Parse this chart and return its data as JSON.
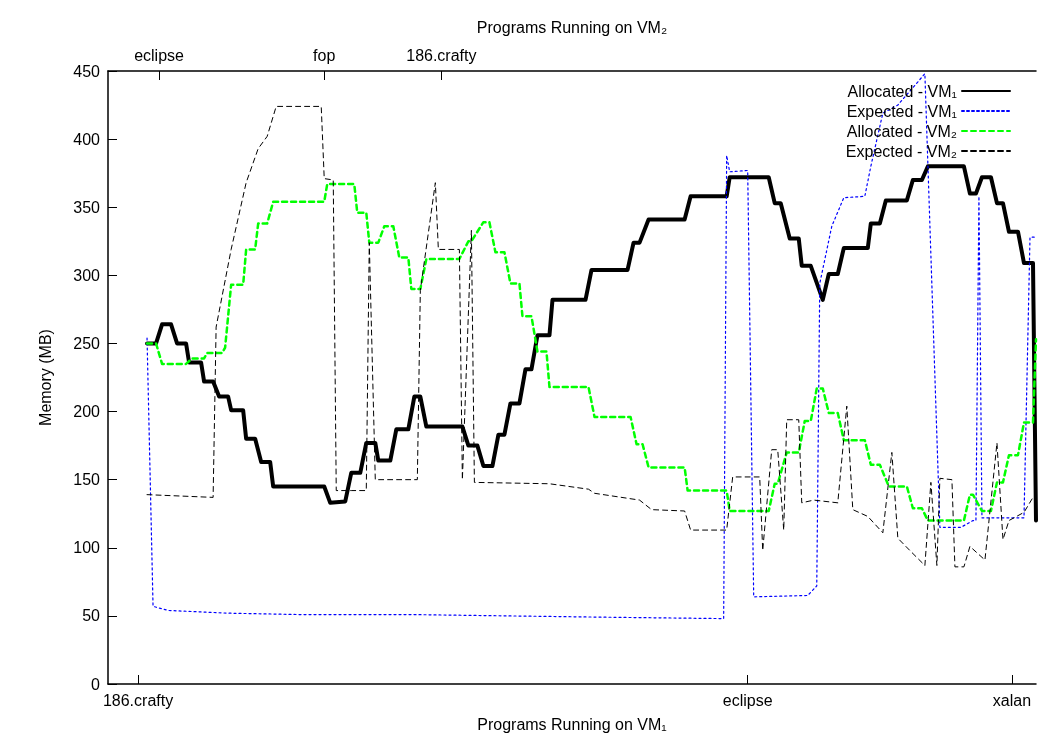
{
  "chart_data": {
    "type": "line",
    "xlabel": "Programs Running on VM₁",
    "x2label": "Programs Running on VM₂",
    "ylabel": "Memory (MB)",
    "annotations": [
      "eclipse",
      "fop",
      "186.crafty"
    ],
    "categories": [
      null,
      null,
      null,
      null,
      null,
      null,
      null,
      null,
      null,
      null,
      "186.crafty",
      null,
      null,
      null,
      null,
      null,
      null,
      null,
      null,
      null,
      null,
      null,
      null,
      null,
      null,
      null,
      null,
      null,
      null,
      null,
      null,
      null,
      null,
      null,
      null,
      null,
      null,
      null,
      null,
      null,
      null,
      null,
      null,
      null,
      null,
      null,
      null,
      null,
      null,
      null,
      null,
      null,
      null,
      null,
      null,
      null,
      null,
      null,
      null,
      null,
      null,
      null,
      null,
      null,
      null,
      null,
      null,
      null,
      null,
      null,
      null,
      null,
      null,
      null,
      null,
      null,
      null,
      null,
      null,
      null,
      null,
      null,
      null,
      null,
      null,
      null,
      null,
      null,
      null,
      null,
      null,
      null,
      null,
      null,
      null,
      null,
      null,
      null,
      null,
      null,
      null,
      null,
      null,
      null,
      null,
      null,
      null,
      null,
      null,
      null,
      null,
      null,
      null,
      null,
      null,
      null,
      null,
      null,
      null,
      null,
      null,
      null,
      null,
      null,
      null,
      null,
      null,
      null,
      null,
      null,
      null,
      null,
      null,
      null,
      null,
      null,
      null,
      null,
      null,
      null,
      null,
      null,
      null,
      null,
      null,
      null,
      null,
      null,
      null,
      null,
      null,
      null,
      null,
      null,
      null,
      null,
      null,
      null,
      null,
      null,
      null,
      null,
      null,
      null,
      null,
      null,
      null,
      null,
      null,
      null,
      null,
      null,
      null,
      null,
      null,
      null,
      null,
      null,
      null,
      null,
      null,
      null,
      null,
      null,
      null,
      null,
      null,
      null,
      null,
      null,
      null,
      null,
      null,
      null,
      null,
      null,
      null,
      null,
      null,
      null,
      null,
      null,
      null,
      null,
      null,
      null,
      null,
      null,
      null,
      null,
      null,
      null,
      null,
      "eclipse",
      null,
      null,
      null,
      null,
      null,
      null,
      null,
      null,
      null,
      null,
      null,
      null,
      null,
      null,
      null,
      null,
      null,
      null,
      null,
      null,
      null,
      null,
      null,
      null,
      null,
      null,
      null,
      null,
      null,
      null,
      null,
      null,
      null,
      null,
      null,
      null,
      null,
      null,
      null,
      null,
      null,
      null,
      null,
      null,
      null,
      null,
      null,
      null,
      null,
      null,
      null,
      null,
      null,
      null,
      null,
      null,
      null,
      null,
      null,
      null,
      null,
      null,
      null,
      null,
      null,
      null,
      null,
      null,
      null,
      null,
      null,
      null,
      null,
      null,
      null,
      null,
      null,
      null,
      null,
      null,
      null,
      null,
      null,
      null,
      null,
      null,
      null,
      "xalan",
      null,
      null,
      null,
      null,
      null,
      null,
      null,
      null
    ],
    "ylim": [
      0,
      450
    ],
    "yticks": [
      0,
      50,
      100,
      150,
      200,
      250,
      300,
      350,
      400,
      450
    ],
    "grid": false,
    "legend": "top right",
    "marker": "none",
    "series": [
      {
        "name": "Allocated - VM₁",
        "color": "#000000",
        "line_style": "solid",
        "values": [
          null,
          null,
          null,
          null,
          null,
          null,
          null,
          null,
          null,
          null,
          null,
          null,
          null,
          250,
          null,
          null,
          250,
          null,
          264,
          null,
          null,
          264,
          null,
          250,
          null,
          null,
          250,
          236,
          null,
          null,
          null,
          236,
          222,
          null,
          null,
          222,
          null,
          211,
          null,
          null,
          211,
          201,
          null,
          null,
          null,
          201,
          180,
          null,
          null,
          180,
          null,
          163,
          null,
          null,
          163,
          145,
          null,
          null,
          null,
          null,
          null,
          null,
          null,
          null,
          null,
          null,
          null,
          null,
          null,
          null,
          null,
          null,
          145,
          null,
          133,
          null,
          null,
          null,
          null,
          134,
          null,
          155,
          null,
          null,
          155,
          null,
          177,
          null,
          null,
          177,
          164,
          null,
          null,
          null,
          164,
          null,
          187,
          null,
          null,
          null,
          187,
          null,
          211,
          null,
          211,
          null,
          189,
          null,
          null,
          null,
          null,
          null,
          null,
          null,
          null,
          null,
          null,
          null,
          189,
          null,
          175,
          null,
          null,
          175,
          null,
          160,
          null,
          null,
          160,
          null,
          183,
          null,
          183,
          null,
          206,
          null,
          null,
          206,
          null,
          231,
          null,
          231,
          null,
          256,
          null,
          null,
          null,
          256,
          282,
          null,
          null,
          null,
          null,
          null,
          null,
          null,
          null,
          null,
          null,
          282,
          null,
          304,
          null,
          null,
          null,
          null,
          null,
          null,
          null,
          null,
          null,
          null,
          null,
          304,
          null,
          324,
          null,
          324,
          null,
          null,
          341,
          null,
          null,
          null,
          null,
          null,
          null,
          null,
          null,
          null,
          null,
          null,
          341,
          null,
          358,
          null,
          null,
          null,
          null,
          null,
          null,
          null,
          null,
          null,
          null,
          null,
          358,
          372,
          null,
          null,
          null,
          null,
          null,
          null,
          null,
          null,
          null,
          null,
          null,
          null,
          372,
          null,
          353,
          null,
          353,
          null,
          null,
          327,
          null,
          null,
          327,
          307,
          null,
          null,
          307,
          null,
          null,
          null,
          282,
          null,
          301,
          null,
          null,
          301,
          null,
          320,
          null,
          null,
          null,
          null,
          null,
          null,
          null,
          320,
          338,
          null,
          null,
          338,
          null,
          355,
          null,
          null,
          null,
          null,
          null,
          null,
          355,
          null,
          370,
          null,
          null,
          370,
          null,
          380,
          null,
          null,
          null,
          null,
          null,
          null,
          null,
          null,
          null,
          null,
          null,
          380,
          null,
          360,
          null,
          360,
          null,
          372,
          null,
          null,
          372,
          null,
          353,
          null,
          353,
          null,
          332,
          null,
          null,
          332,
          null,
          309,
          null,
          null,
          309,
          120
        ]
      },
      {
        "name": "Expected - VM₁",
        "color": "#0000ff",
        "line_style": "dotted",
        "values": [
          null,
          null,
          null,
          null,
          null,
          null,
          null,
          null,
          null,
          null,
          null,
          null,
          null,
          254,
          null,
          57,
          null,
          null,
          null,
          null,
          54,
          null,
          null,
          null,
          null,
          null,
          null,
          null,
          null,
          null,
          null,
          null,
          null,
          null,
          null,
          null,
          null,
          null,
          null,
          null,
          52,
          null,
          null,
          null,
          null,
          null,
          null,
          null,
          null,
          null,
          null,
          null,
          null,
          null,
          null,
          null,
          null,
          null,
          null,
          null,
          null,
          null,
          null,
          51,
          null,
          null,
          null,
          null,
          null,
          null,
          null,
          null,
          null,
          null,
          null,
          null,
          null,
          null,
          null,
          null,
          null,
          null,
          null,
          null,
          null,
          null,
          null,
          null,
          null,
          null,
          null,
          null,
          null,
          null,
          null,
          null,
          null,
          null,
          null,
          null,
          51,
          null,
          null,
          null,
          null,
          null,
          null,
          null,
          null,
          null,
          null,
          null,
          null,
          null,
          null,
          null,
          null,
          null,
          null,
          null,
          null,
          null,
          null,
          null,
          null,
          null,
          null,
          null,
          null,
          null,
          null,
          null,
          null,
          50,
          null,
          null,
          null,
          null,
          null,
          null,
          null,
          null,
          null,
          null,
          null,
          null,
          null,
          null,
          null,
          null,
          null,
          null,
          null,
          null,
          null,
          null,
          null,
          null,
          null,
          null,
          null,
          null,
          null,
          null,
          null,
          null,
          null,
          49,
          null,
          null,
          null,
          null,
          null,
          null,
          null,
          null,
          null,
          null,
          null,
          null,
          null,
          null,
          null,
          null,
          null,
          null,
          null,
          null,
          null,
          null,
          null,
          null,
          null,
          null,
          null,
          null,
          null,
          null,
          null,
          null,
          null,
          null,
          null,
          null,
          null,
          48,
          388,
          376,
          null,
          null,
          null,
          null,
          null,
          377,
          null,
          64,
          null,
          null,
          null,
          null,
          null,
          null,
          null,
          null,
          null,
          null,
          null,
          null,
          null,
          null,
          null,
          null,
          null,
          65,
          null,
          null,
          72,
          294,
          null,
          null,
          null,
          336,
          null,
          null,
          null,
          357,
          null,
          null,
          null,
          null,
          null,
          null,
          358,
          null,
          380,
          null,
          null,
          null,
          419,
          null,
          null,
          null,
          null,
          425,
          null,
          null,
          null,
          null,
          null,
          null,
          null,
          null,
          448,
          null,
          null,
          null,
          null,
          115,
          null,
          null,
          null,
          null,
          null,
          null,
          115,
          null,
          null,
          null,
          120,
          120,
          358,
          122,
          null,
          null,
          null,
          null,
          null,
          null,
          null,
          null,
          null,
          null,
          null,
          null,
          null,
          122,
          null,
          328,
          null,
          328
        ]
      },
      {
        "name": "Allocated - VM₂",
        "color": "#00ff00",
        "line_style": "dashed",
        "values": [
          null,
          null,
          null,
          null,
          null,
          null,
          null,
          null,
          null,
          null,
          null,
          null,
          null,
          250,
          null,
          null,
          250,
          null,
          235,
          null,
          null,
          null,
          null,
          null,
          null,
          null,
          235,
          null,
          239,
          null,
          null,
          null,
          239,
          243,
          null,
          null,
          null,
          null,
          243,
          247,
          null,
          293,
          null,
          null,
          null,
          293,
          319,
          null,
          null,
          319,
          338,
          null,
          null,
          338,
          null,
          354,
          null,
          null,
          null,
          null,
          null,
          null,
          null,
          null,
          null,
          null,
          null,
          null,
          null,
          null,
          null,
          null,
          354,
          367,
          null,
          null,
          null,
          null,
          null,
          null,
          null,
          null,
          367,
          346,
          null,
          null,
          346,
          324,
          null,
          null,
          324,
          null,
          336,
          null,
          null,
          336,
          null,
          313,
          null,
          null,
          313,
          290,
          null,
          null,
          290,
          null,
          312,
          null,
          null,
          null,
          null,
          null,
          null,
          null,
          null,
          null,
          null,
          312,
          null,
          null,
          325,
          325,
          null,
          null,
          null,
          339,
          null,
          339,
          null,
          317,
          null,
          null,
          317,
          null,
          294,
          null,
          null,
          294,
          270,
          null,
          null,
          270,
          null,
          244,
          null,
          null,
          244,
          218,
          null,
          null,
          null,
          null,
          null,
          null,
          null,
          null,
          null,
          null,
          null,
          null,
          218,
          null,
          196,
          null,
          null,
          null,
          null,
          null,
          null,
          null,
          null,
          null,
          null,
          null,
          196,
          null,
          176,
          null,
          176,
          null,
          159,
          null,
          null,
          null,
          null,
          null,
          null,
          null,
          null,
          null,
          null,
          null,
          159,
          142,
          null,
          null,
          null,
          null,
          null,
          null,
          null,
          null,
          null,
          null,
          null,
          null,
          142,
          127,
          null,
          null,
          null,
          null,
          null,
          null,
          null,
          null,
          null,
          null,
          null,
          null,
          127,
          null,
          147,
          147,
          null,
          null,
          170,
          null,
          null,
          null,
          170,
          null,
          193,
          null,
          193,
          null,
          217,
          null,
          217,
          null,
          199,
          null,
          null,
          199,
          null,
          179,
          null,
          null,
          null,
          null,
          null,
          null,
          179,
          null,
          161,
          null,
          null,
          161,
          null,
          null,
          145,
          null,
          null,
          null,
          null,
          null,
          145,
          null,
          129,
          null,
          null,
          129,
          null,
          120,
          null,
          null,
          null,
          null,
          null,
          null,
          null,
          null,
          null,
          null,
          null,
          120,
          null,
          139,
          139,
          null,
          null,
          127,
          null,
          null,
          127,
          null,
          148,
          null,
          148,
          null,
          168,
          null,
          null,
          168,
          null,
          192,
          null,
          null,
          192,
          253
        ]
      },
      {
        "name": "Expected - VM₂",
        "color": "#000000",
        "line_style": "dashed",
        "values": [
          null,
          null,
          null,
          null,
          null,
          null,
          null,
          null,
          null,
          null,
          null,
          null,
          null,
          139,
          null,
          null,
          null,
          null,
          null,
          null,
          null,
          null,
          null,
          null,
          null,
          null,
          null,
          null,
          null,
          null,
          null,
          null,
          null,
          null,
          null,
          137,
          262,
          null,
          null,
          null,
          null,
          319,
          null,
          null,
          null,
          null,
          368,
          null,
          null,
          null,
          393,
          null,
          null,
          402,
          null,
          null,
          424,
          null,
          null,
          null,
          null,
          null,
          null,
          null,
          null,
          null,
          null,
          null,
          null,
          null,
          null,
          424,
          371,
          null,
          null,
          370,
          142,
          null,
          null,
          null,
          null,
          142,
          null,
          null,
          null,
          null,
          142,
          324,
          null,
          150,
          null,
          null,
          null,
          null,
          null,
          null,
          null,
          null,
          null,
          null,
          null,
          null,
          null,
          150,
          289,
          null,
          null,
          null,
          null,
          368,
          319,
          null,
          null,
          null,
          null,
          null,
          null,
          319,
          150,
          null,
          null,
          333,
          148,
          null,
          null,
          null,
          null,
          null,
          null,
          null,
          null,
          null,
          null,
          null,
          null,
          null,
          null,
          null,
          null,
          null,
          null,
          null,
          null,
          null,
          null,
          null,
          null,
          147,
          null,
          null,
          null,
          null,
          null,
          null,
          null,
          null,
          null,
          null,
          null,
          null,
          143,
          null,
          140,
          null,
          null,
          null,
          null,
          null,
          null,
          null,
          null,
          null,
          null,
          null,
          null,
          null,
          null,
          135,
          null,
          null,
          null,
          128,
          null,
          null,
          null,
          null,
          null,
          null,
          null,
          null,
          null,
          null,
          127,
          null,
          113,
          null,
          null,
          null,
          null,
          null,
          null,
          null,
          null,
          null,
          null,
          null,
          113,
          null,
          152,
          null,
          null,
          null,
          null,
          null,
          null,
          null,
          null,
          152,
          98,
          null,
          null,
          172,
          null,
          172,
          null,
          113,
          194,
          null,
          null,
          null,
          194,
          133,
          null,
          null,
          null,
          135,
          null,
          null,
          null,
          null,
          null,
          null,
          null,
          133,
          null,
          null,
          204,
          null,
          128,
          null,
          null,
          null,
          null,
          123,
          null,
          null,
          null,
          null,
          111,
          null,
          null,
          170,
          null,
          107,
          null,
          null,
          null,
          98,
          null,
          null,
          null,
          null,
          87,
          null,
          148,
          null,
          87,
          151,
          null,
          null,
          null,
          150,
          86,
          null,
          null,
          86,
          null,
          101,
          null,
          null,
          null,
          null,
          91,
          null,
          null,
          null,
          177,
          null,
          106,
          null,
          120,
          null,
          null,
          null,
          null,
          126,
          null,
          null,
          137,
          null
        ]
      }
    ]
  }
}
